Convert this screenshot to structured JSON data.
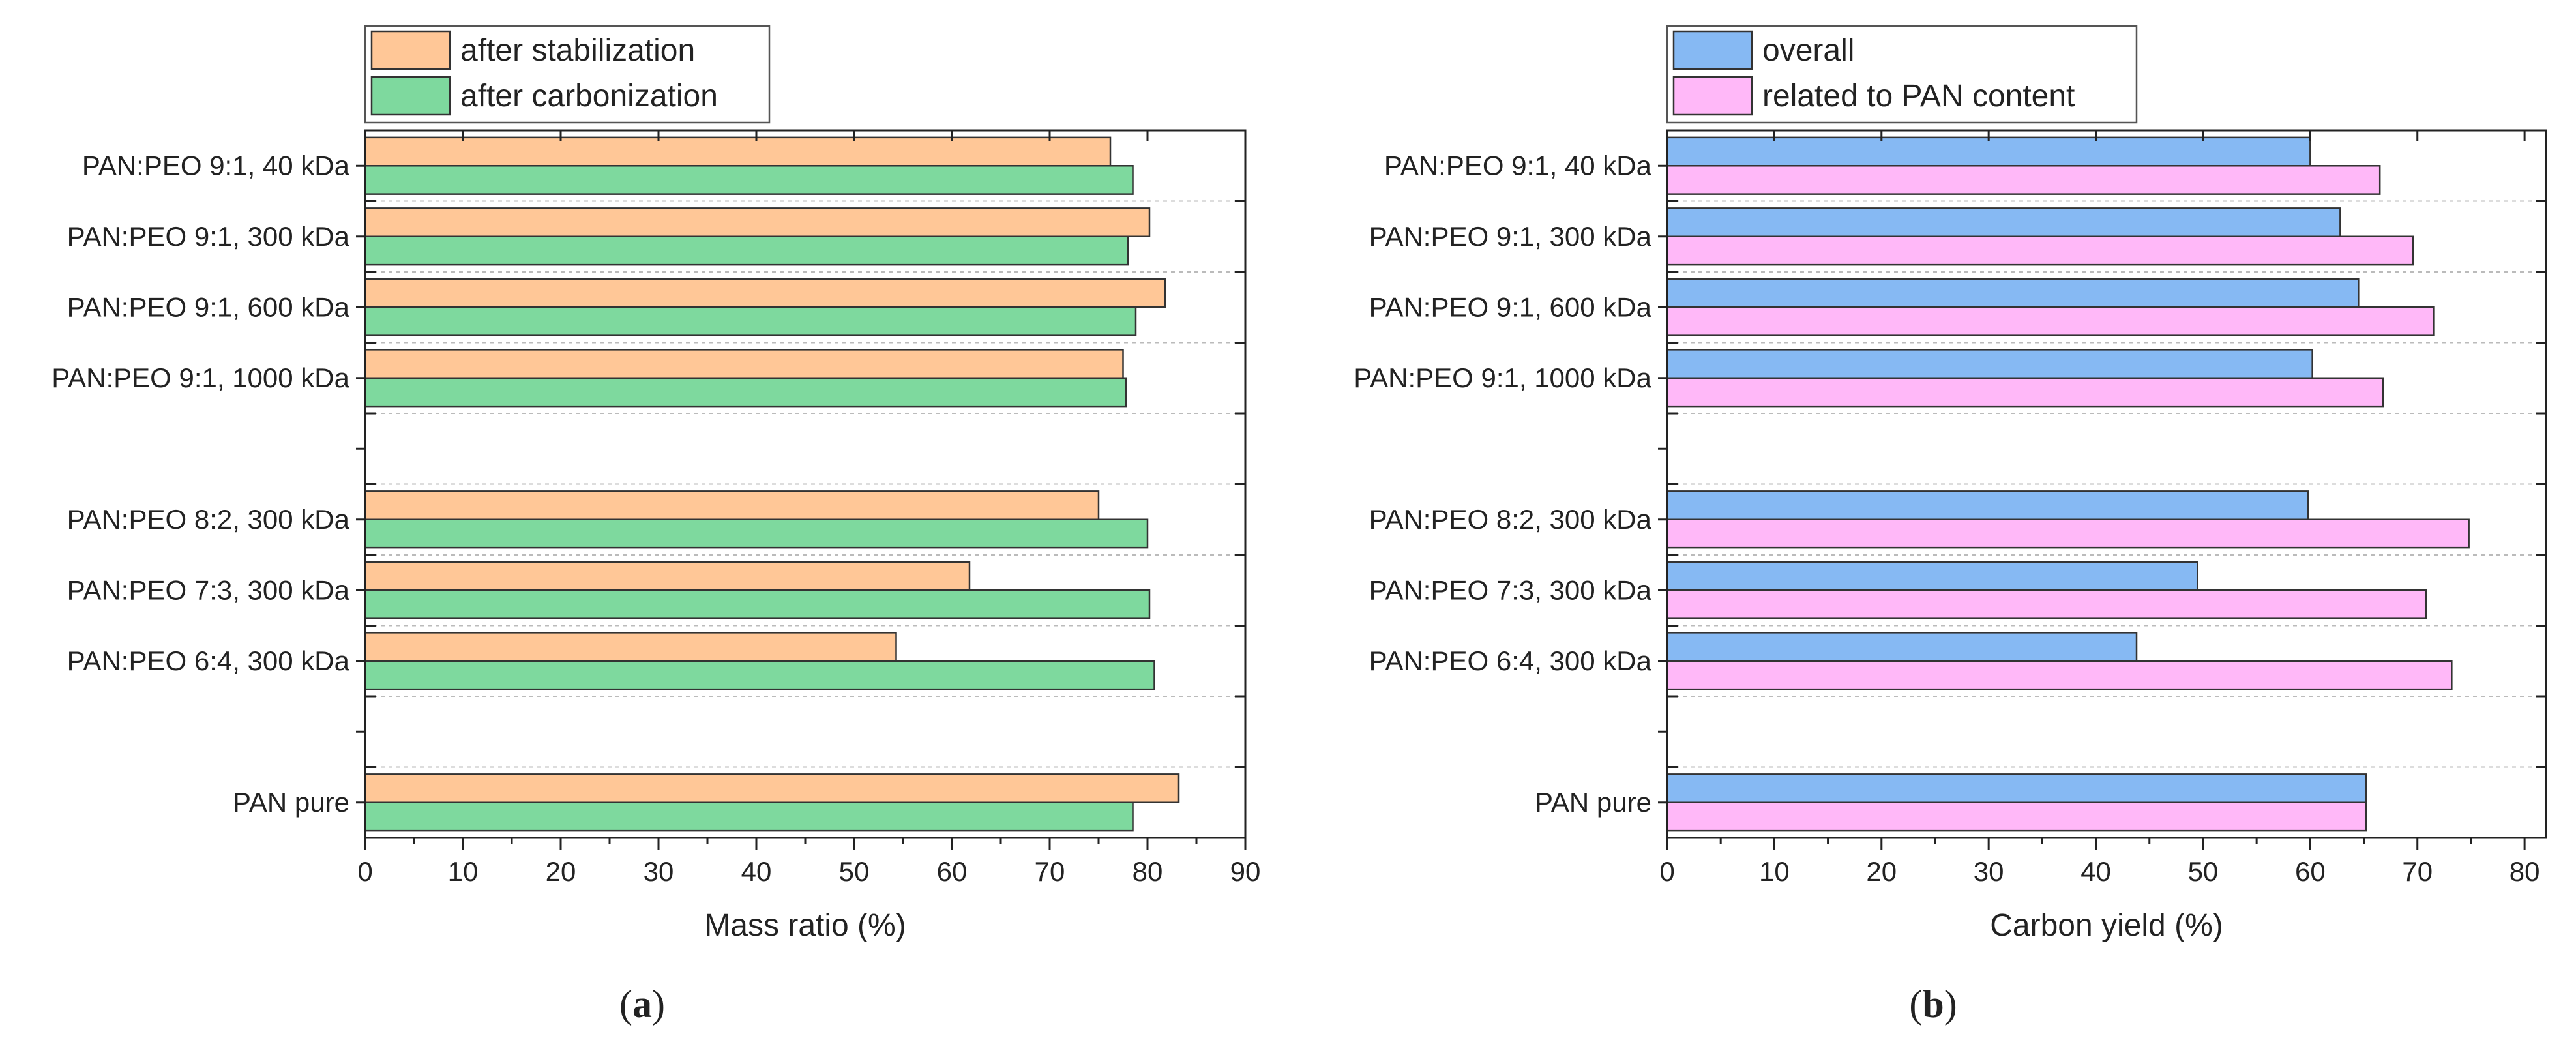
{
  "colors": {
    "stabilization": "#FFC797",
    "carbonization": "#7ED99E",
    "overall": "#86B9F3",
    "pan_content": "#FFB8F8",
    "bar_stroke": "#333333",
    "grid": "#bbbbbb"
  },
  "chart_data": [
    {
      "type": "bar",
      "orientation": "horizontal",
      "panel": "(a)",
      "panel_letter": "a",
      "xlabel": "Mass ratio (%)",
      "ylabel": "",
      "xlim": [
        0,
        90
      ],
      "xticks": [
        0,
        10,
        20,
        30,
        40,
        50,
        60,
        70,
        80,
        90
      ],
      "grid": "horizontal dashed",
      "legend_position": "top-left, above plot",
      "categories": [
        "PAN:PEO 9:1, 40 kDa",
        "PAN:PEO 9:1, 300 kDa",
        "PAN:PEO 9:1, 600 kDa",
        "PAN:PEO 9:1, 1000 kDa",
        "",
        "PAN:PEO 8:2, 300 kDa",
        "PAN:PEO 7:3, 300 kDa",
        "PAN:PEO 6:4, 300 kDa",
        "",
        "PAN pure"
      ],
      "series": [
        {
          "name": "after stabilization",
          "color_key": "stabilization",
          "values": [
            76.2,
            80.2,
            81.8,
            77.5,
            null,
            75.0,
            61.8,
            54.3,
            null,
            83.2
          ]
        },
        {
          "name": "after carbonization",
          "color_key": "carbonization",
          "values": [
            78.5,
            78.0,
            78.8,
            77.8,
            null,
            80.0,
            80.2,
            80.7,
            null,
            78.5
          ]
        }
      ]
    },
    {
      "type": "bar",
      "orientation": "horizontal",
      "panel": "(b)",
      "panel_letter": "b",
      "xlabel": "Carbon yield (%)",
      "ylabel": "",
      "xlim": [
        0,
        82
      ],
      "xticks": [
        0,
        10,
        20,
        30,
        40,
        50,
        60,
        70,
        80
      ],
      "grid": "horizontal dashed",
      "legend_position": "top-left, above plot",
      "categories": [
        "PAN:PEO 9:1, 40 kDa",
        "PAN:PEO 9:1, 300 kDa",
        "PAN:PEO 9:1, 600 kDa",
        "PAN:PEO 9:1, 1000 kDa",
        "",
        "PAN:PEO 8:2, 300 kDa",
        "PAN:PEO 7:3, 300 kDa",
        "PAN:PEO 6:4, 300 kDa",
        "",
        "PAN pure"
      ],
      "series": [
        {
          "name": "overall",
          "color_key": "overall",
          "values": [
            60.0,
            62.8,
            64.5,
            60.2,
            null,
            59.8,
            49.5,
            43.8,
            null,
            65.2
          ]
        },
        {
          "name": "related to PAN content",
          "color_key": "pan_content",
          "values": [
            66.5,
            69.6,
            71.5,
            66.8,
            null,
            74.8,
            70.8,
            73.2,
            null,
            65.2
          ]
        }
      ]
    }
  ]
}
